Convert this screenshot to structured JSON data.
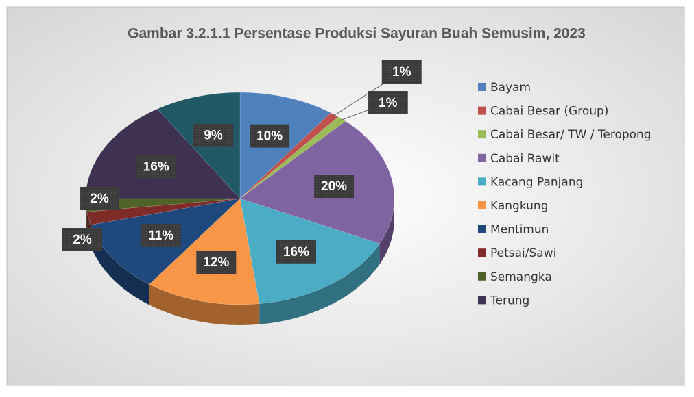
{
  "chart_data": {
    "type": "pie",
    "title": "Gambar 3.2.1.1 Persentase Produksi Sayuran Buah Semusim, 2023",
    "categories": [
      "Bayam",
      "Cabai Besar (Group)",
      "Cabai Besar/ TW / Teropong",
      "Cabai Rawit",
      "Kacang Panjang",
      "Kangkung",
      "Mentimun",
      "Petsai/Sawi",
      "Semangka",
      "Terung",
      null
    ],
    "values": [
      10,
      1,
      1,
      20,
      16,
      12,
      11,
      2,
      2,
      16,
      9
    ],
    "value_labels": [
      "10%",
      "1%",
      "1%",
      "20%",
      "16%",
      "12%",
      "11%",
      "2%",
      "2%",
      "16%",
      "9%"
    ],
    "colors": [
      "#4f81bd",
      "#c0504d",
      "#9bbb59",
      "#8064a2",
      "#4bacc6",
      "#f79646",
      "#1f497d",
      "#7f2b28",
      "#4f6228",
      "#3f3151",
      "#215967"
    ],
    "legend": "right"
  }
}
